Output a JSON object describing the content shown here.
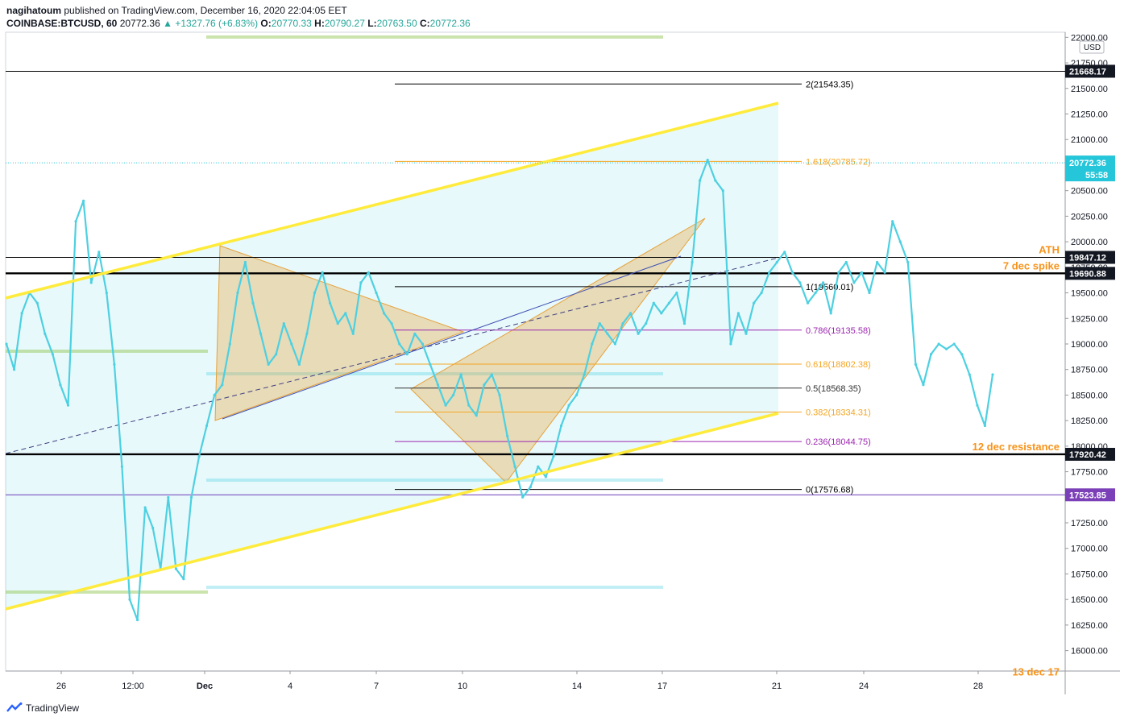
{
  "header": {
    "publisher": "nagihatoum",
    "published_text": "published on TradingView.com, December 16, 2020 22:04:05 EET",
    "symbol": "COINBASE:BTCUSD, 60",
    "last": "20772.36",
    "change": "▲ +1327.76 (+6.83%)",
    "o_label": "O:",
    "o_value": "20770.33",
    "h_label": "H:",
    "h_value": "20790.27",
    "l_label": "L:",
    "l_value": "20763.50",
    "c_label": "C:",
    "c_value": "20772.36"
  },
  "footer": {
    "brand": "TradingView"
  },
  "colors": {
    "price_line": "#4dd0e1",
    "channel": "#ffeb3b",
    "triangle": "#e6a23c",
    "fib_black": "#000000",
    "fib_orange": "#f5a623",
    "fib_purple": "#9c27b0",
    "label_orange": "#f7931a",
    "current_price_bg": "#26c6da",
    "purple_label_bg": "#7b3fb8"
  },
  "chart_data": {
    "type": "line",
    "ylim": [
      15800,
      22050
    ],
    "y_ticks": [
      16000,
      16250,
      16500,
      16750,
      17000,
      17250,
      17500,
      17750,
      18000,
      18250,
      18500,
      18750,
      19000,
      19250,
      19500,
      19750,
      20000,
      20250,
      20500,
      20750,
      21000,
      21250,
      21500,
      21750,
      22000
    ],
    "y_tick_labels": [
      "16000.00",
      "16250.00",
      "16500.00",
      "16750.00",
      "17000.00",
      "17250.00",
      "17500.00",
      "17750.00",
      "18000.00",
      "18250.00",
      "18500.00",
      "18750.00",
      "19000.00",
      "19250.00",
      "19500.00",
      "19750.00",
      "20000.00",
      "20250.00",
      "20500.00",
      "20750.00",
      "21000.00",
      "21250.00",
      "21500.00",
      "21750.00",
      "22000.00"
    ],
    "currency": "USD",
    "x_ticks": [
      "26",
      "12:00",
      "Dec",
      "4",
      "7",
      "10",
      "14",
      "17",
      "21",
      "24",
      "28"
    ],
    "series": [
      {
        "values": [
          19000,
          18750,
          19300,
          19500,
          19400,
          19100,
          18900,
          18600,
          18400,
          20200,
          20400,
          19600,
          19900,
          19500,
          18800,
          17800,
          16500,
          16300,
          17400,
          17200,
          16800,
          17500,
          16800,
          16700,
          17500,
          17900,
          18200,
          18500,
          18600,
          19000,
          19500,
          19800,
          19400,
          19100,
          18800,
          18900,
          19200,
          19000,
          18800,
          19100,
          19500,
          19700,
          19400,
          19200,
          19300,
          19100,
          19600,
          19700,
          19500,
          19300,
          19200,
          19000,
          18900,
          19100,
          19000,
          18800,
          18600,
          18400,
          18500,
          18700,
          18400,
          18300,
          18600,
          18700,
          18500,
          18100,
          17800,
          17500,
          17600,
          17800,
          17700,
          17900,
          18200,
          18400,
          18500,
          18700,
          19000,
          19200,
          19100,
          19000,
          19200,
          19300,
          19100,
          19200,
          19400,
          19300,
          19400,
          19500,
          19200,
          19800,
          20600,
          20800,
          20600,
          20500,
          19000,
          19300,
          19100,
          19400,
          19500,
          19700,
          19800,
          19900,
          19700,
          19600,
          19400,
          19500,
          19600,
          19300,
          19700,
          19800,
          19600,
          19700,
          19500,
          19800,
          19700,
          20200,
          20000,
          19800,
          18800,
          18600,
          18900,
          19000,
          18950,
          19000,
          18900,
          18700,
          18400,
          18200,
          18700
        ]
      }
    ],
    "horizontal_levels": [
      {
        "value": 21668.17,
        "label": "21668.17"
      },
      {
        "value": 19847.12,
        "label": "19847.12"
      },
      {
        "value": 19690.88,
        "label": "19690.88"
      },
      {
        "value": 17920.42,
        "label": "17920.42"
      },
      {
        "value": 17523.85,
        "label": "17523.85"
      }
    ],
    "current_price": {
      "value": 20772.36,
      "label": "20772.36",
      "countdown": "55:58"
    },
    "fib_levels": [
      {
        "value": 21543.35,
        "label": "2(21543.35)",
        "color": "#000000"
      },
      {
        "value": 20785.72,
        "label": "1.618(20785.72)",
        "color": "#f5a623"
      },
      {
        "value": 19560.01,
        "label": "1(19560.01)",
        "color": "#000000"
      },
      {
        "value": 19135.58,
        "label": "0.786(19135.58)",
        "color": "#9c27b0"
      },
      {
        "value": 18802.38,
        "label": "0.618(18802.38)",
        "color": "#f5a623"
      },
      {
        "value": 18568.35,
        "label": "0.5(18568.35)",
        "color": "#333333"
      },
      {
        "value": 18334.31,
        "label": "0.382(18334.31)",
        "color": "#f5a623"
      },
      {
        "value": 18044.75,
        "label": "0.236(18044.75)",
        "color": "#9c27b0"
      },
      {
        "value": 17576.68,
        "label": "0(17576.68)",
        "color": "#000000"
      }
    ],
    "annotations": [
      {
        "text": "ATH",
        "value": 19920
      },
      {
        "text": "7 dec spike",
        "value": 19760
      },
      {
        "text": "12 dec resistance",
        "value": 17990
      },
      {
        "text": "13 dec 17",
        "value": 15790
      }
    ]
  }
}
